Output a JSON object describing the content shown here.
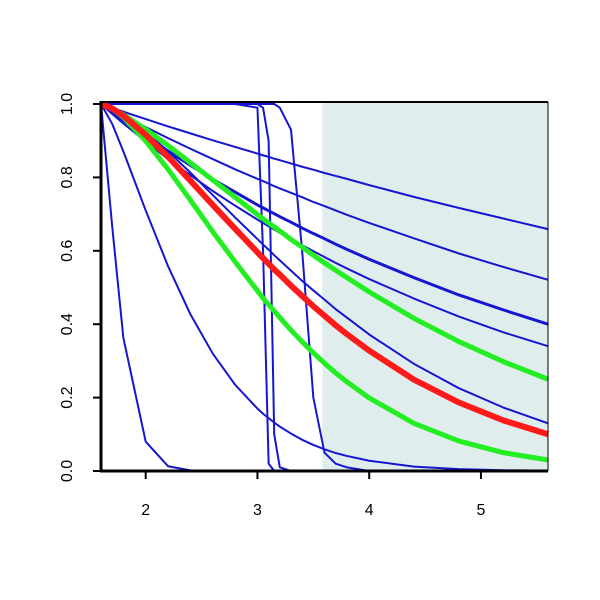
{
  "chart_data": {
    "type": "line",
    "xlim": [
      1.6,
      5.6
    ],
    "ylim": [
      0,
      1
    ],
    "xticks": [
      2,
      3,
      4,
      5
    ],
    "yticks": [
      {
        "value": 0,
        "label": "0.0"
      },
      0.2,
      0.4,
      0.6,
      0.8,
      {
        "value": 1,
        "label": "1.0"
      }
    ],
    "shaded_region": {
      "x": [
        3.58,
        5.6
      ],
      "color": "#e0eded"
    },
    "x": [
      1.6,
      1.7,
      1.8,
      2.0,
      2.2,
      2.4,
      2.6,
      2.8,
      3.0,
      3.05,
      3.1,
      3.15,
      3.2,
      3.3,
      3.4,
      3.5,
      3.6,
      3.7,
      3.8,
      4.0,
      4.4,
      4.8,
      5.2,
      5.6
    ],
    "series": [
      {
        "color": "#1616d2",
        "linewidth": 2,
        "values": [
          1,
          0.99,
          0.979,
          0.959,
          0.939,
          0.92,
          0.901,
          0.883,
          0.865,
          0.86,
          0.856,
          0.851,
          0.847,
          0.838,
          0.829,
          0.821,
          0.812,
          0.804,
          0.796,
          0.779,
          0.747,
          0.717,
          0.688,
          0.659
        ]
      },
      {
        "color": "#1616d2",
        "linewidth": 2,
        "values": [
          1,
          0.984,
          0.968,
          0.937,
          0.907,
          0.878,
          0.85,
          0.822,
          0.796,
          0.79,
          0.783,
          0.776,
          0.77,
          0.758,
          0.746,
          0.733,
          0.722,
          0.71,
          0.698,
          0.676,
          0.634,
          0.593,
          0.556,
          0.521
        ]
      },
      {
        "color": "#1616d2",
        "linewidth": 3,
        "values": [
          1,
          0.977,
          0.955,
          0.912,
          0.872,
          0.833,
          0.795,
          0.76,
          0.725,
          0.717,
          0.709,
          0.701,
          0.693,
          0.678,
          0.662,
          0.647,
          0.633,
          0.618,
          0.604,
          0.577,
          0.527,
          0.48,
          0.439,
          0.4
        ]
      },
      {
        "color": "#1616d2",
        "linewidth": 2,
        "values": [
          1,
          0.973,
          0.947,
          0.898,
          0.85,
          0.806,
          0.763,
          0.723,
          0.685,
          0.676,
          0.667,
          0.658,
          0.649,
          0.632,
          0.615,
          0.599,
          0.583,
          0.567,
          0.552,
          0.523,
          0.47,
          0.421,
          0.378,
          0.34
        ]
      },
      {
        "color": "#1616d2",
        "linewidth": 2,
        "values": [
          1,
          0.989,
          0.971,
          0.925,
          0.871,
          0.813,
          0.752,
          0.691,
          0.632,
          0.617,
          0.603,
          0.588,
          0.574,
          0.546,
          0.518,
          0.492,
          0.467,
          0.441,
          0.418,
          0.372,
          0.292,
          0.226,
          0.173,
          0.13
        ]
      },
      {
        "color": "#1616d2",
        "linewidth": 2,
        "values": [
          1,
          0.946,
          0.871,
          0.71,
          0.558,
          0.427,
          0.32,
          0.235,
          0.17,
          0.156,
          0.144,
          0.132,
          0.121,
          0.102,
          0.085,
          0.071,
          0.059,
          0.049,
          0.041,
          0.028,
          0.012,
          0.005,
          0.002,
          0.001
        ]
      },
      {
        "color": "#1616d2",
        "linewidth": 2,
        "values": [
          1,
          0.667,
          0.363,
          0.08,
          0.013,
          0.0018,
          0.0002,
          0,
          0,
          0,
          0,
          0,
          0,
          0,
          0,
          0,
          0,
          0,
          0,
          0,
          0,
          0,
          0,
          0
        ]
      },
      {
        "color": "#1616d2",
        "linewidth": 2,
        "values": [
          1,
          1,
          1,
          1,
          1,
          1,
          1,
          1,
          0.99,
          0.6,
          0.02,
          0,
          0,
          0,
          0,
          0,
          0,
          0,
          0,
          0,
          0,
          0,
          0,
          0
        ]
      },
      {
        "color": "#1616d2",
        "linewidth": 2,
        "values": [
          1,
          1,
          1,
          1,
          1,
          1,
          1,
          1,
          1,
          0.99,
          0.9,
          0.1,
          0.01,
          0,
          0,
          0,
          0,
          0,
          0,
          0,
          0,
          0,
          0,
          0
        ]
      },
      {
        "color": "#1616d2",
        "linewidth": 2,
        "values": [
          1,
          1,
          1,
          1,
          1,
          1,
          1,
          1,
          1,
          1,
          1,
          1,
          0.99,
          0.93,
          0.6,
          0.2,
          0.05,
          0.02,
          0.01,
          0,
          0,
          0,
          0,
          0
        ]
      },
      {
        "color": "#1616d2",
        "linewidth": 2,
        "values": [
          1,
          0.988,
          0.971,
          0.931,
          0.887,
          0.84,
          0.793,
          0.746,
          0.699,
          0.687,
          0.676,
          0.665,
          0.654,
          0.631,
          0.61,
          0.588,
          0.567,
          0.547,
          0.527,
          0.488,
          0.416,
          0.353,
          0.298,
          0.25
        ]
      },
      {
        "color": "#22ee22",
        "linewidth": 5,
        "values": [
          1,
          0.988,
          0.971,
          0.931,
          0.887,
          0.84,
          0.793,
          0.746,
          0.699,
          0.687,
          0.676,
          0.665,
          0.654,
          0.631,
          0.61,
          0.588,
          0.567,
          0.547,
          0.527,
          0.488,
          0.416,
          0.353,
          0.298,
          0.25
        ]
      },
      {
        "color": "#22ee22",
        "linewidth": 5,
        "values": [
          1,
          0.987,
          0.964,
          0.899,
          0.822,
          0.738,
          0.652,
          0.57,
          0.491,
          0.471,
          0.453,
          0.436,
          0.418,
          0.384,
          0.352,
          0.322,
          0.294,
          0.267,
          0.243,
          0.199,
          0.13,
          0.082,
          0.05,
          0.03
        ]
      },
      {
        "color": "#ff1a1a",
        "linewidth": 6,
        "values": [
          1,
          0.988,
          0.968,
          0.916,
          0.856,
          0.791,
          0.725,
          0.66,
          0.596,
          0.58,
          0.565,
          0.549,
          0.535,
          0.505,
          0.477,
          0.449,
          0.423,
          0.397,
          0.373,
          0.328,
          0.249,
          0.187,
          0.138,
          0.1
        ]
      }
    ]
  }
}
